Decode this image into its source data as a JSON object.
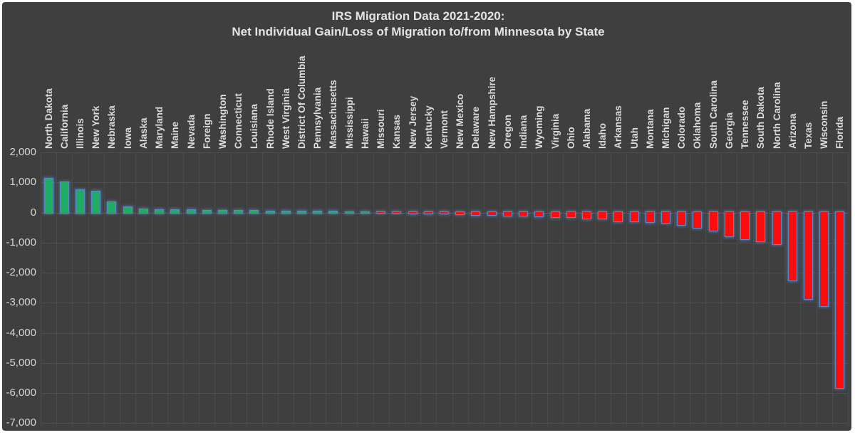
{
  "window": {
    "frame_color": "#FFFFFF"
  },
  "chart": {
    "background": "#3F3F3F",
    "gridline_color": "#4F4F4F",
    "text_color": "#D6D6D6",
    "positive_color": "#21AC63",
    "negative_color": "#FC0D0D",
    "bar_border_color": "#5B8AC9",
    "title_line1": "IRS Migration Data 2021-2020:",
    "title_line2": "Net Individual Gain/Loss of Migration to/from Minnesota by State"
  },
  "chart_data": {
    "type": "bar",
    "title": "IRS Migration Data 2021-2020: Net Individual Gain/Loss of Migration to/from Minnesota by State",
    "xlabel": "",
    "ylabel": "",
    "ylim": [
      -7000,
      2000
    ],
    "ytick_interval": 1000,
    "ytick_labels": [
      "2,000",
      "1,000",
      "0",
      "-1,000",
      "-2,000",
      "-3,000",
      "-4,000",
      "-5,000",
      "-6,000",
      "-7,000"
    ],
    "grid": true,
    "legend": false,
    "bar_color_rule": "green if positive, red if negative",
    "categories": [
      "North Dakota",
      "California",
      "Illinois",
      "New York",
      "Nebraska",
      "Iowa",
      "Alaska",
      "Maryland",
      "Maine",
      "Nevada",
      "Foreign",
      "Washington",
      "Connecticut",
      "Louisiana",
      "Rhode Island",
      "West Virginia",
      "District Of Columbia",
      "Pennsylvania",
      "Massachusetts",
      "Mississippi",
      "Hawaii",
      "Missouri",
      "Kansas",
      "New Jersey",
      "Kentucky",
      "Vermont",
      "New Mexico",
      "Delaware",
      "New Hampshire",
      "Oregon",
      "Indiana",
      "Wyoming",
      "Virginia",
      "Ohio",
      "Alabama",
      "Idaho",
      "Arkansas",
      "Utah",
      "Montana",
      "Michigan",
      "Colorado",
      "Oklahoma",
      "South Carolina",
      "Georgia",
      "Tennessee",
      "South Dakota",
      "North Carolina",
      "Arizona",
      "Texas",
      "Wisconsin",
      "Florida"
    ],
    "values": [
      1120,
      1000,
      745,
      690,
      340,
      170,
      90,
      80,
      65,
      60,
      55,
      50,
      45,
      40,
      35,
      30,
      25,
      20,
      15,
      5,
      0,
      -5,
      -10,
      -15,
      -25,
      -35,
      -45,
      -60,
      -80,
      -95,
      -105,
      -125,
      -140,
      -150,
      -185,
      -195,
      -275,
      -290,
      -310,
      -340,
      -400,
      -490,
      -600,
      -770,
      -870,
      -950,
      -1030,
      -2240,
      -2860,
      -3100,
      -5830
    ]
  }
}
